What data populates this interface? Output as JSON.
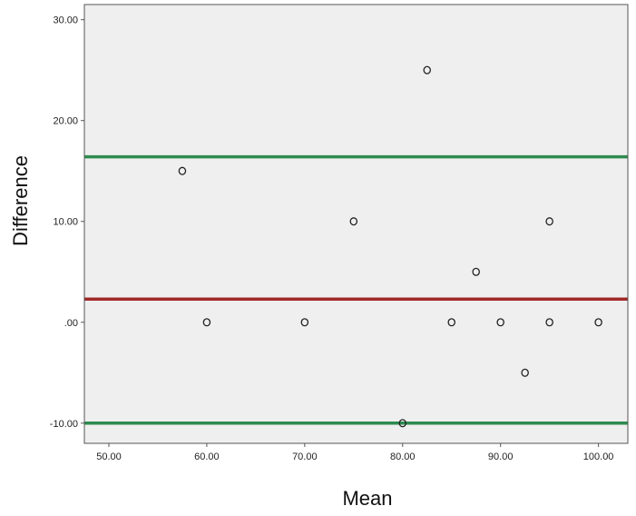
{
  "chart_data": {
    "type": "scatter",
    "xlabel": "Mean",
    "ylabel": "Difference",
    "xlim": [
      47.5,
      103
    ],
    "ylim": [
      -12,
      31.5
    ],
    "x_ticks": [
      50,
      60,
      70,
      80,
      90,
      100
    ],
    "x_tick_labels": [
      "50.00",
      "60.00",
      "70.00",
      "80.00",
      "90.00",
      "100.00"
    ],
    "y_ticks": [
      30,
      20,
      10,
      0,
      -10
    ],
    "y_tick_labels": [
      "30.00",
      "20.00",
      "10.00",
      ".00",
      "-10.00"
    ],
    "grid": false,
    "points": [
      {
        "x": 57.5,
        "y": 15
      },
      {
        "x": 60,
        "y": 0
      },
      {
        "x": 70,
        "y": 0
      },
      {
        "x": 75,
        "y": 10
      },
      {
        "x": 80,
        "y": -10
      },
      {
        "x": 82.5,
        "y": 25
      },
      {
        "x": 85,
        "y": 0
      },
      {
        "x": 87.5,
        "y": 5
      },
      {
        "x": 90,
        "y": 0
      },
      {
        "x": 92.5,
        "y": -5
      },
      {
        "x": 95,
        "y": 10
      },
      {
        "x": 95,
        "y": 0
      },
      {
        "x": 100,
        "y": 0
      }
    ],
    "reference_lines": [
      {
        "y": 16.4,
        "color": "#2e8b4f"
      },
      {
        "y": 2.3,
        "color": "#a02828"
      },
      {
        "y": -10,
        "color": "#2e8b4f"
      }
    ],
    "colors": {
      "plot_background": "#efefef",
      "frame": "#555555",
      "marker_stroke": "#222222"
    }
  }
}
